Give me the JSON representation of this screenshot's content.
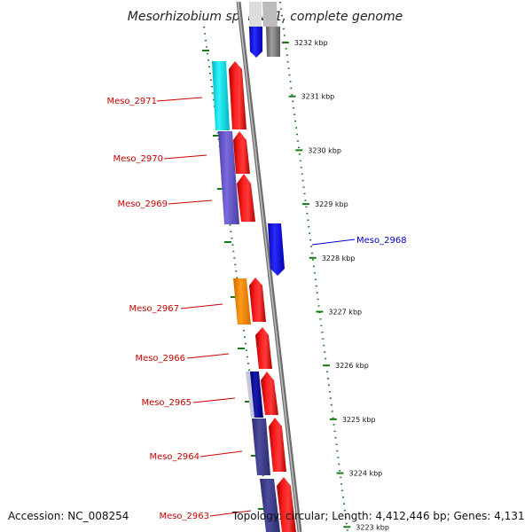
{
  "header": {
    "title": "Mesorhizobium sp. BNC1, complete genome"
  },
  "footer": {
    "accession": "Accession: NC_008254",
    "summary": "Topology: circular; Length: 4,412,446 bp; Genes: 4,131"
  },
  "map": {
    "ticks": [
      {
        "kbp": 3232,
        "label": "3232 kbp"
      },
      {
        "kbp": 3231,
        "label": "3231 kbp"
      },
      {
        "kbp": 3230,
        "label": "3230 kbp"
      },
      {
        "kbp": 3229,
        "label": "3229 kbp"
      },
      {
        "kbp": 3228,
        "label": "3228 kbp"
      },
      {
        "kbp": 3227,
        "label": "3227 kbp"
      },
      {
        "kbp": 3226,
        "label": "3226 kbp"
      },
      {
        "kbp": 3225,
        "label": "3225 kbp"
      },
      {
        "kbp": 3224,
        "label": "3224 kbp"
      },
      {
        "kbp": 3223,
        "label": "3223 kbp"
      }
    ],
    "genes": [
      {
        "name": "Meso_2971",
        "strand": "minus"
      },
      {
        "name": "Meso_2970",
        "strand": "minus"
      },
      {
        "name": "Meso_2969",
        "strand": "minus"
      },
      {
        "name": "Meso_2968",
        "strand": "plus"
      },
      {
        "name": "Meso_2967",
        "strand": "minus"
      },
      {
        "name": "Meso_2966",
        "strand": "minus"
      },
      {
        "name": "Meso_2965",
        "strand": "minus"
      },
      {
        "name": "Meso_2964",
        "strand": "minus"
      },
      {
        "name": "Meso_2963",
        "strand": "minus"
      }
    ],
    "colors": {
      "minus_strand_label": "#cc0000",
      "plus_strand_label": "#0000cc",
      "cds_arrow": "#ee0000",
      "plus_gene_arrow": "#1515ee",
      "backbone": "#888888",
      "tick": "#1a7a1a",
      "slate_blue": "#6a5acd",
      "cyan": "#00e5ee",
      "orange": "#ff8c00",
      "dark_slate": "#3f3f8f",
      "gray": "#7f7f7f"
    }
  }
}
